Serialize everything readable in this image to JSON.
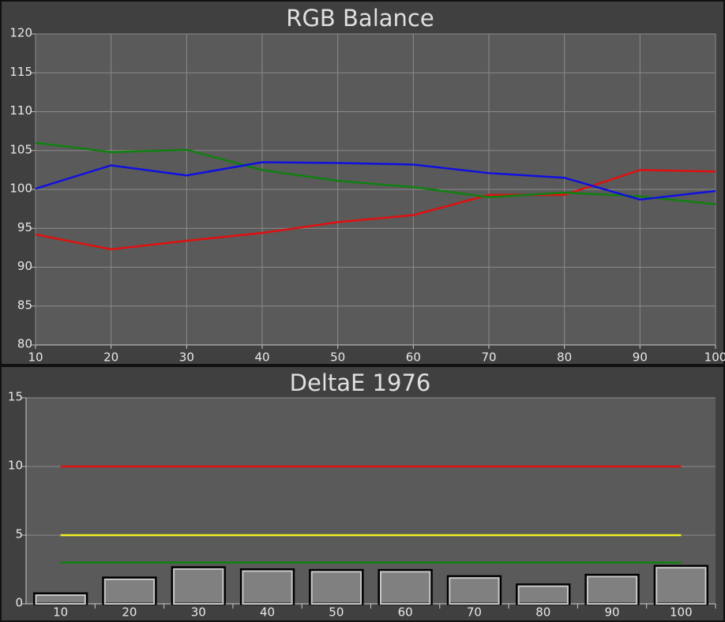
{
  "chart_data": [
    {
      "type": "line",
      "title": "RGB Balance",
      "x": [
        10,
        20,
        30,
        40,
        50,
        60,
        70,
        80,
        90,
        100
      ],
      "xlim": [
        10,
        100
      ],
      "xticks": [
        10,
        20,
        30,
        40,
        50,
        60,
        70,
        80,
        90,
        100
      ],
      "ylim": [
        80,
        120
      ],
      "yticks": [
        80,
        85,
        90,
        95,
        100,
        105,
        110,
        115,
        120
      ],
      "grid": true,
      "series": [
        {
          "color": "#e01010",
          "values": [
            94.2,
            92.3,
            93.4,
            94.4,
            95.8,
            96.7,
            99.3,
            99.3,
            102.5,
            102.3
          ]
        },
        {
          "color": "#108010",
          "values": [
            106.0,
            104.8,
            105.1,
            102.5,
            101.1,
            100.3,
            99.0,
            99.6,
            99.1,
            98.1
          ]
        },
        {
          "color": "#1010e0",
          "values": [
            100.1,
            103.1,
            101.8,
            103.5,
            103.4,
            103.2,
            102.1,
            101.5,
            98.7,
            99.8
          ]
        }
      ]
    },
    {
      "type": "bar",
      "title": "DeltaE 1976",
      "categories": [
        "10",
        "20",
        "30",
        "40",
        "50",
        "60",
        "70",
        "80",
        "90",
        "100"
      ],
      "values": [
        0.75,
        1.9,
        2.65,
        2.5,
        2.45,
        2.45,
        2.0,
        1.4,
        2.1,
        2.75
      ],
      "color": "#808080",
      "ylim": [
        0,
        15
      ],
      "yticks": [
        0,
        5,
        10,
        15
      ],
      "grid": true,
      "reference_lines": [
        {
          "value": 10,
          "color": "#e01010"
        },
        {
          "value": 5,
          "color": "#f0f020"
        },
        {
          "value": 3,
          "color": "#108010"
        }
      ]
    }
  ]
}
